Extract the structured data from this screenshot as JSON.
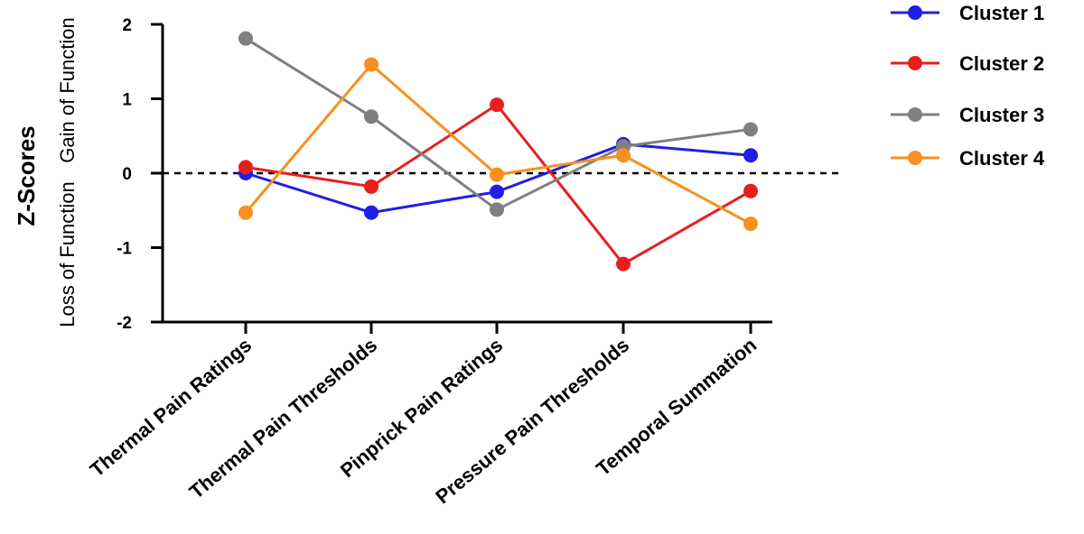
{
  "chart_data": {
    "type": "line",
    "categories": [
      "Thermal Pain Ratings",
      "Thermal Pain Thresholds",
      "Pinprick Pain Ratings",
      "Pressure Pain Thresholds",
      "Temporal Summation"
    ],
    "series": [
      {
        "name": "Cluster 1",
        "color": "#1f1fe6",
        "values": [
          0.0,
          -0.53,
          -0.25,
          0.39,
          0.24
        ]
      },
      {
        "name": "Cluster 2",
        "color": "#e81e1e",
        "values": [
          0.08,
          -0.18,
          0.92,
          -1.22,
          -0.24
        ]
      },
      {
        "name": "Cluster 3",
        "color": "#7f7f7f",
        "values": [
          1.81,
          0.76,
          -0.49,
          0.36,
          0.59
        ]
      },
      {
        "name": "Cluster 4",
        "color": "#f7901e",
        "values": [
          -0.53,
          1.46,
          -0.02,
          0.24,
          -0.68
        ]
      }
    ],
    "ylabel": "Z-Scores",
    "ylabel_loss": "Loss of Function",
    "ylabel_gain": "Gain of Function",
    "ylim": [
      -2,
      2
    ],
    "yticks": [
      "2",
      "1",
      "0",
      "-1",
      "-2"
    ],
    "reference_line": {
      "y": 0,
      "style": "dashed"
    },
    "legend": "right",
    "grid": false
  }
}
